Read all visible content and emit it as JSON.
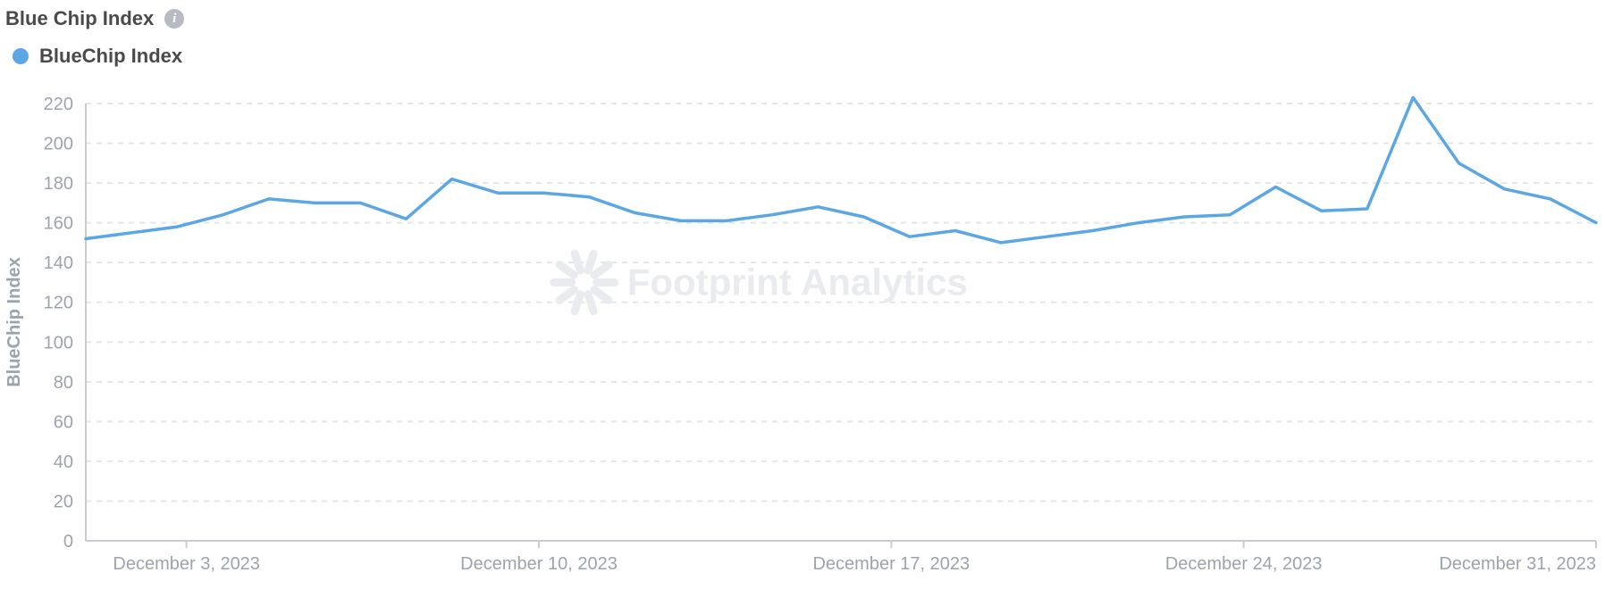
{
  "header": {
    "title": "Blue Chip Index",
    "info_icon": "i"
  },
  "legend": {
    "dot_color": "#5ba7e6",
    "label": "BlueChip Index"
  },
  "watermark": {
    "text": "Footprint Analytics",
    "color": "#e9ebee"
  },
  "chart": {
    "type": "line",
    "background_color": "#ffffff",
    "grid_color": "#e3e5e8",
    "axis_line_color": "#c9ccd1",
    "tick_label_color": "#9ea3ab",
    "tick_fontsize": 20,
    "y_axis": {
      "title": "BlueChip Index",
      "min": 0,
      "max": 220,
      "tick_step": 20,
      "ticks": [
        0,
        20,
        40,
        60,
        80,
        100,
        120,
        140,
        160,
        180,
        200,
        220
      ]
    },
    "x_axis": {
      "min_index": 0,
      "max_index": 30,
      "tick_indices": [
        2,
        9,
        16,
        23,
        30
      ],
      "tick_labels": [
        "December 3, 2023",
        "December 10, 2023",
        "December 17, 2023",
        "December 24, 2023",
        "December 31, 2023"
      ]
    },
    "series": {
      "name": "BlueChip Index",
      "color": "#5ba7e6",
      "line_width": 3.5,
      "values": [
        152,
        155,
        158,
        164,
        172,
        170,
        170,
        162,
        182,
        175,
        175,
        173,
        165,
        161,
        161,
        164,
        168,
        163,
        153,
        156,
        150,
        153,
        156,
        160,
        163,
        164,
        178,
        166,
        167,
        223,
        190,
        177,
        172,
        160
      ]
    }
  }
}
